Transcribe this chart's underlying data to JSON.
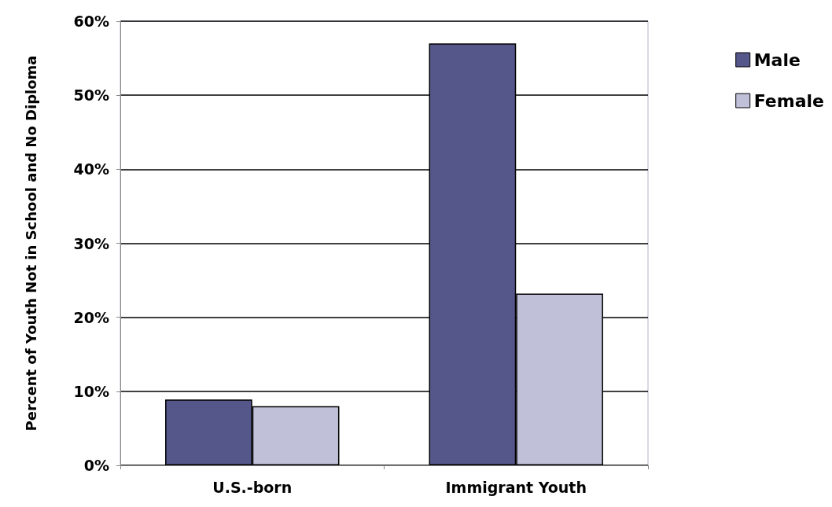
{
  "chart_data": {
    "type": "bar",
    "ylabel": "Percent of Youth Not in School and No Diploma",
    "categories": [
      "U.S.-born",
      "Immigrant Youth"
    ],
    "series": [
      {
        "name": "Male",
        "color": "#55578a",
        "values": [
          8.9,
          57
        ]
      },
      {
        "name": "Female",
        "color": "#c0c0d8",
        "values": [
          8,
          23.2
        ]
      }
    ],
    "ylim": [
      0,
      60
    ],
    "yticks": [
      {
        "value": 0,
        "label": "0%"
      },
      {
        "value": 10,
        "label": "10%"
      },
      {
        "value": 20,
        "label": "20%"
      },
      {
        "value": 30,
        "label": "30%"
      },
      {
        "value": 40,
        "label": "40%"
      },
      {
        "value": 50,
        "label": "50%"
      },
      {
        "value": 60,
        "label": "60%"
      }
    ],
    "grid": "y",
    "legend": "top right"
  }
}
